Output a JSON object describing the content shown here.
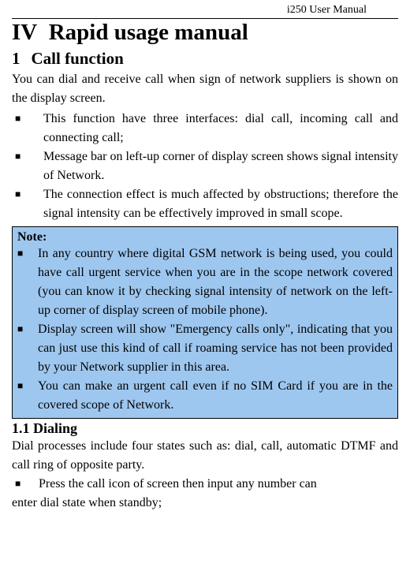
{
  "header": {
    "manual_title": "i250 User Manual"
  },
  "chapter": {
    "num": "IV",
    "title": "Rapid usage manual"
  },
  "section1": {
    "num": "1",
    "title": "Call function",
    "intro": "You can dial and receive call when sign of network suppliers is shown on the display screen.",
    "bullets": [
      "This function have three interfaces: dial call, incoming call and connecting call;",
      "Message bar on left-up corner of display screen shows signal intensity of Network.",
      "The connection effect is much affected by obstructions; therefore the signal intensity can be effectively improved in small scope."
    ]
  },
  "note": {
    "label": "Note:",
    "bullets": [
      "In any country where digital GSM network is being used, you could have call urgent service when you are in the scope network covered (you can know it by checking signal intensity of network on the left-up corner of display screen of mobile phone).",
      "Display screen will show \"Emergency calls only\", indicating that you can just use this kind of call if roaming service has not been provided by your Network supplier in this area.",
      "You can make an urgent call even if no SIM Card if you are in the covered scope of Network."
    ]
  },
  "subsection": {
    "num": "1.1",
    "title": "Dialing",
    "intro": "Dial processes include four states such as: dial, call, automatic DTMF and call ring of opposite party.",
    "bullet_line1": "Press the call icon of screen then input any number can",
    "bullet_line2": "enter dial state when standby;"
  },
  "colors": {
    "note_bg": "#9ec7ef",
    "border": "#000000",
    "text": "#000000",
    "bg": "#ffffff"
  },
  "typography": {
    "body_fontsize_pt": 12,
    "chapter_fontsize_pt": 22,
    "section_fontsize_pt": 16,
    "subsection_fontsize_pt": 14,
    "font_family": "Times New Roman"
  }
}
